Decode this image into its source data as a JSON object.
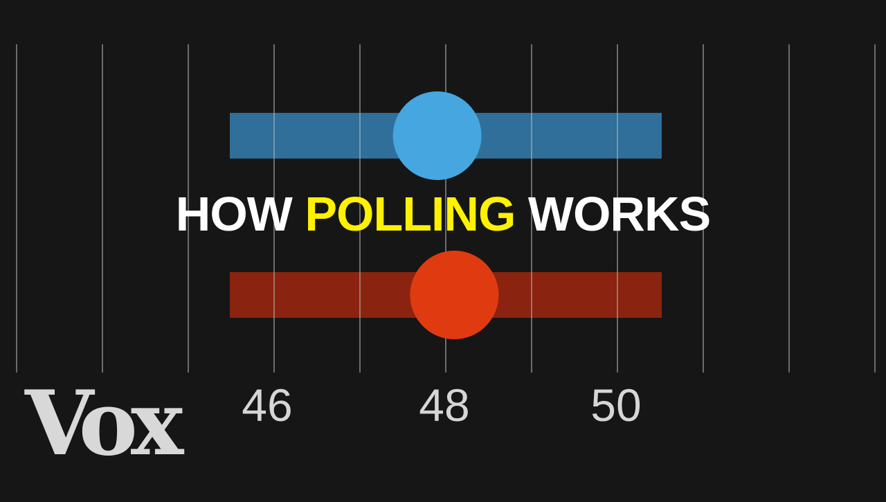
{
  "title": {
    "part1": "HOW",
    "part2": "POLLING",
    "part3": "WORKS",
    "color_main": "#ffffff",
    "color_highlight": "#fff200"
  },
  "logo": {
    "text": "Vox",
    "color": "#d8d8d8"
  },
  "colors": {
    "background": "#161616",
    "gridline": "#bcbcbc",
    "blue_bar": "#2f6f99",
    "blue_dot": "#46a6e0",
    "red_bar": "#8a2410",
    "red_dot": "#e03b10",
    "tick_label": "#d6d6d6"
  },
  "chart_data": {
    "type": "scatter",
    "x_tick_labels": [
      "46",
      "48",
      "50"
    ],
    "series": [
      {
        "point": 47.9,
        "range": [
          45.5,
          50.5
        ]
      },
      {
        "point": 48.1,
        "range": [
          45.5,
          50.5
        ]
      }
    ]
  }
}
